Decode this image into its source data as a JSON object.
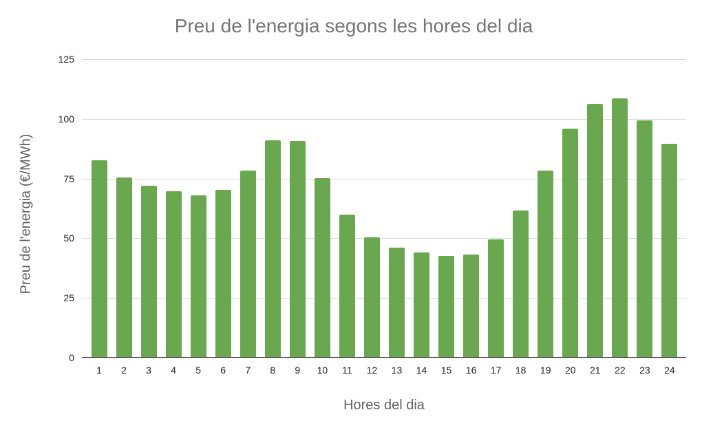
{
  "chart_data": {
    "type": "bar",
    "title": "Preu de l'energia segons les hores del dia",
    "xlabel": "Hores del dia",
    "ylabel": "Preu de l'energia (€/MWh)",
    "categories": [
      "1",
      "2",
      "3",
      "4",
      "5",
      "6",
      "7",
      "8",
      "9",
      "10",
      "11",
      "12",
      "13",
      "14",
      "15",
      "16",
      "17",
      "18",
      "19",
      "20",
      "21",
      "22",
      "23",
      "24"
    ],
    "values": [
      82.7,
      75.6,
      71.9,
      69.7,
      68.1,
      70.3,
      78.3,
      91.1,
      90.8,
      75.3,
      59.8,
      50.3,
      46.2,
      44.0,
      42.5,
      43.1,
      49.4,
      61.5,
      78.2,
      95.9,
      106.4,
      108.6,
      99.5,
      89.6
    ],
    "ylim": [
      0,
      125
    ],
    "yticks": [
      0,
      25,
      50,
      75,
      100,
      125
    ],
    "grid": true,
    "legend": "none",
    "bar_color": "#6aa84f"
  }
}
